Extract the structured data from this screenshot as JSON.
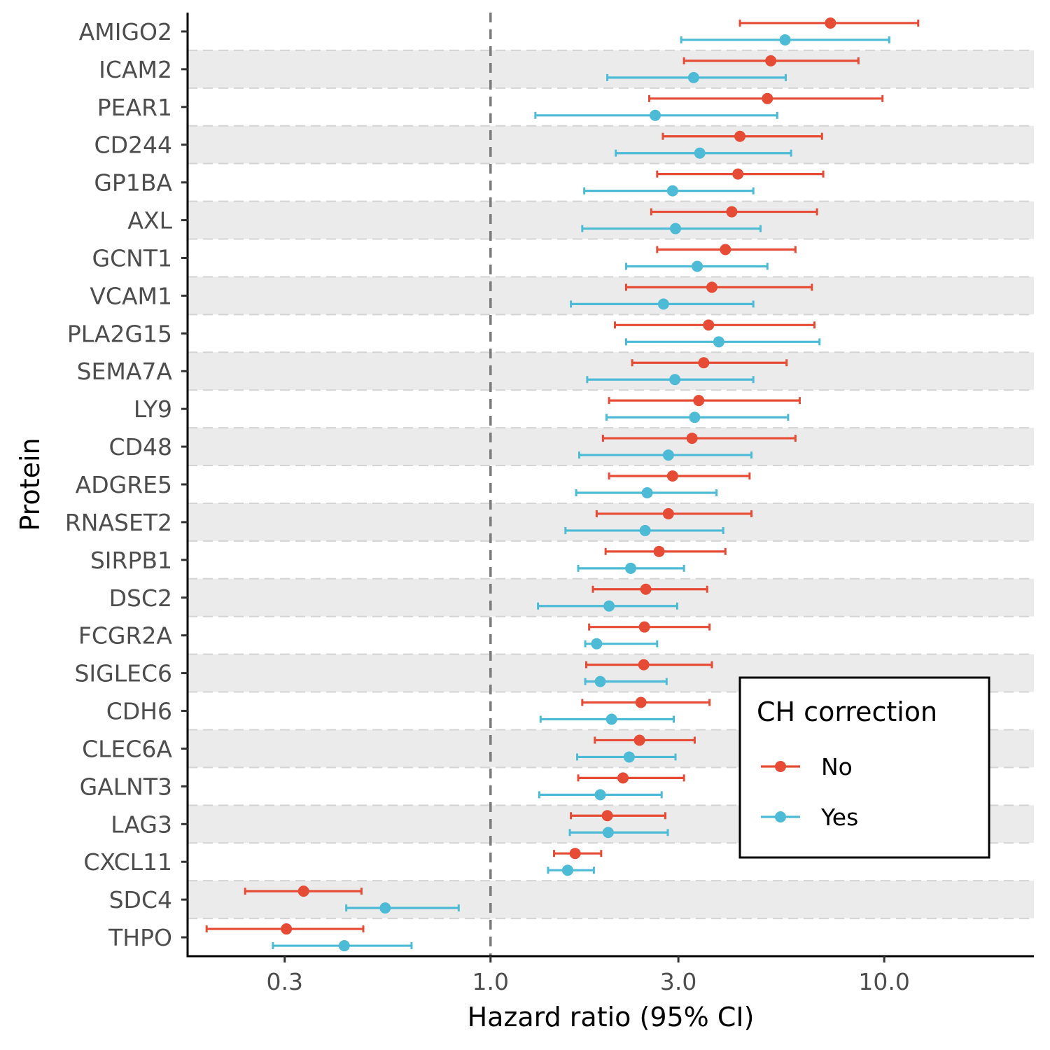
{
  "chart_data": {
    "type": "forest",
    "title": "",
    "xlabel": "Hazard ratio (95% CI)",
    "ylabel": "Protein",
    "x_scale": "log",
    "xlim": [
      0.17,
      24
    ],
    "x_ticks": [
      0.3,
      1.0,
      3.0,
      10.0
    ],
    "x_tick_labels": [
      "0.3",
      "1.0",
      "3.0",
      "10.0"
    ],
    "reference_line": 1.0,
    "legend": {
      "title": "CH correction",
      "position": "bottom-right",
      "entries": [
        {
          "label": "No",
          "color": "#E64B35"
        },
        {
          "label": "Yes",
          "color": "#4DBBD5"
        }
      ]
    },
    "band_colors": [
      "#ffffff",
      "#ebebeb"
    ],
    "categories": [
      "AMIGO2",
      "ICAM2",
      "PEAR1",
      "CD244",
      "GP1BA",
      "AXL",
      "GCNT1",
      "VCAM1",
      "PLA2G15",
      "SEMA7A",
      "LY9",
      "CD48",
      "ADGRE5",
      "RNASET2",
      "SIRPB1",
      "DSC2",
      "FCGR2A",
      "SIGLEC6",
      "CDH6",
      "CLEC6A",
      "GALNT3",
      "LAG3",
      "CXCL11",
      "SDC4",
      "THPO"
    ],
    "series": [
      {
        "name": "No",
        "color": "#E64B35",
        "hr": [
          7.3,
          5.15,
          5.05,
          4.3,
          4.25,
          4.1,
          3.95,
          3.65,
          3.58,
          3.48,
          3.38,
          3.25,
          2.9,
          2.83,
          2.68,
          2.48,
          2.46,
          2.45,
          2.41,
          2.39,
          2.17,
          1.98,
          1.64,
          0.335,
          0.303
        ],
        "lower": [
          4.3,
          3.1,
          2.53,
          2.74,
          2.65,
          2.56,
          2.65,
          2.21,
          2.07,
          2.29,
          2.0,
          1.93,
          2.0,
          1.86,
          1.96,
          1.82,
          1.78,
          1.75,
          1.71,
          1.84,
          1.67,
          1.6,
          1.45,
          0.238,
          0.19
        ],
        "upper": [
          12.2,
          8.6,
          9.9,
          6.95,
          7.0,
          6.75,
          5.95,
          6.55,
          6.65,
          5.65,
          6.1,
          5.95,
          4.55,
          4.6,
          3.95,
          3.55,
          3.6,
          3.65,
          3.6,
          3.3,
          3.1,
          2.78,
          1.91,
          0.47,
          0.475
        ]
      },
      {
        "name": "Yes",
        "color": "#4DBBD5",
        "hr": [
          5.6,
          3.28,
          2.62,
          3.4,
          2.9,
          2.95,
          3.35,
          2.75,
          3.8,
          2.94,
          3.3,
          2.83,
          2.5,
          2.47,
          2.27,
          2.0,
          1.86,
          1.9,
          2.03,
          2.25,
          1.9,
          1.99,
          1.57,
          0.54,
          0.425
        ],
        "lower": [
          3.05,
          1.98,
          1.3,
          2.08,
          1.73,
          1.71,
          2.21,
          1.6,
          2.21,
          1.76,
          1.97,
          1.68,
          1.65,
          1.55,
          1.67,
          1.32,
          1.74,
          1.74,
          1.34,
          1.66,
          1.33,
          1.59,
          1.4,
          0.43,
          0.28
        ],
        "upper": [
          10.3,
          5.62,
          5.35,
          5.8,
          4.65,
          4.85,
          5.05,
          4.65,
          6.85,
          4.65,
          5.7,
          4.6,
          3.75,
          3.9,
          3.1,
          2.98,
          2.65,
          2.8,
          2.92,
          2.95,
          2.72,
          2.82,
          1.83,
          0.83,
          0.63
        ]
      }
    ]
  }
}
